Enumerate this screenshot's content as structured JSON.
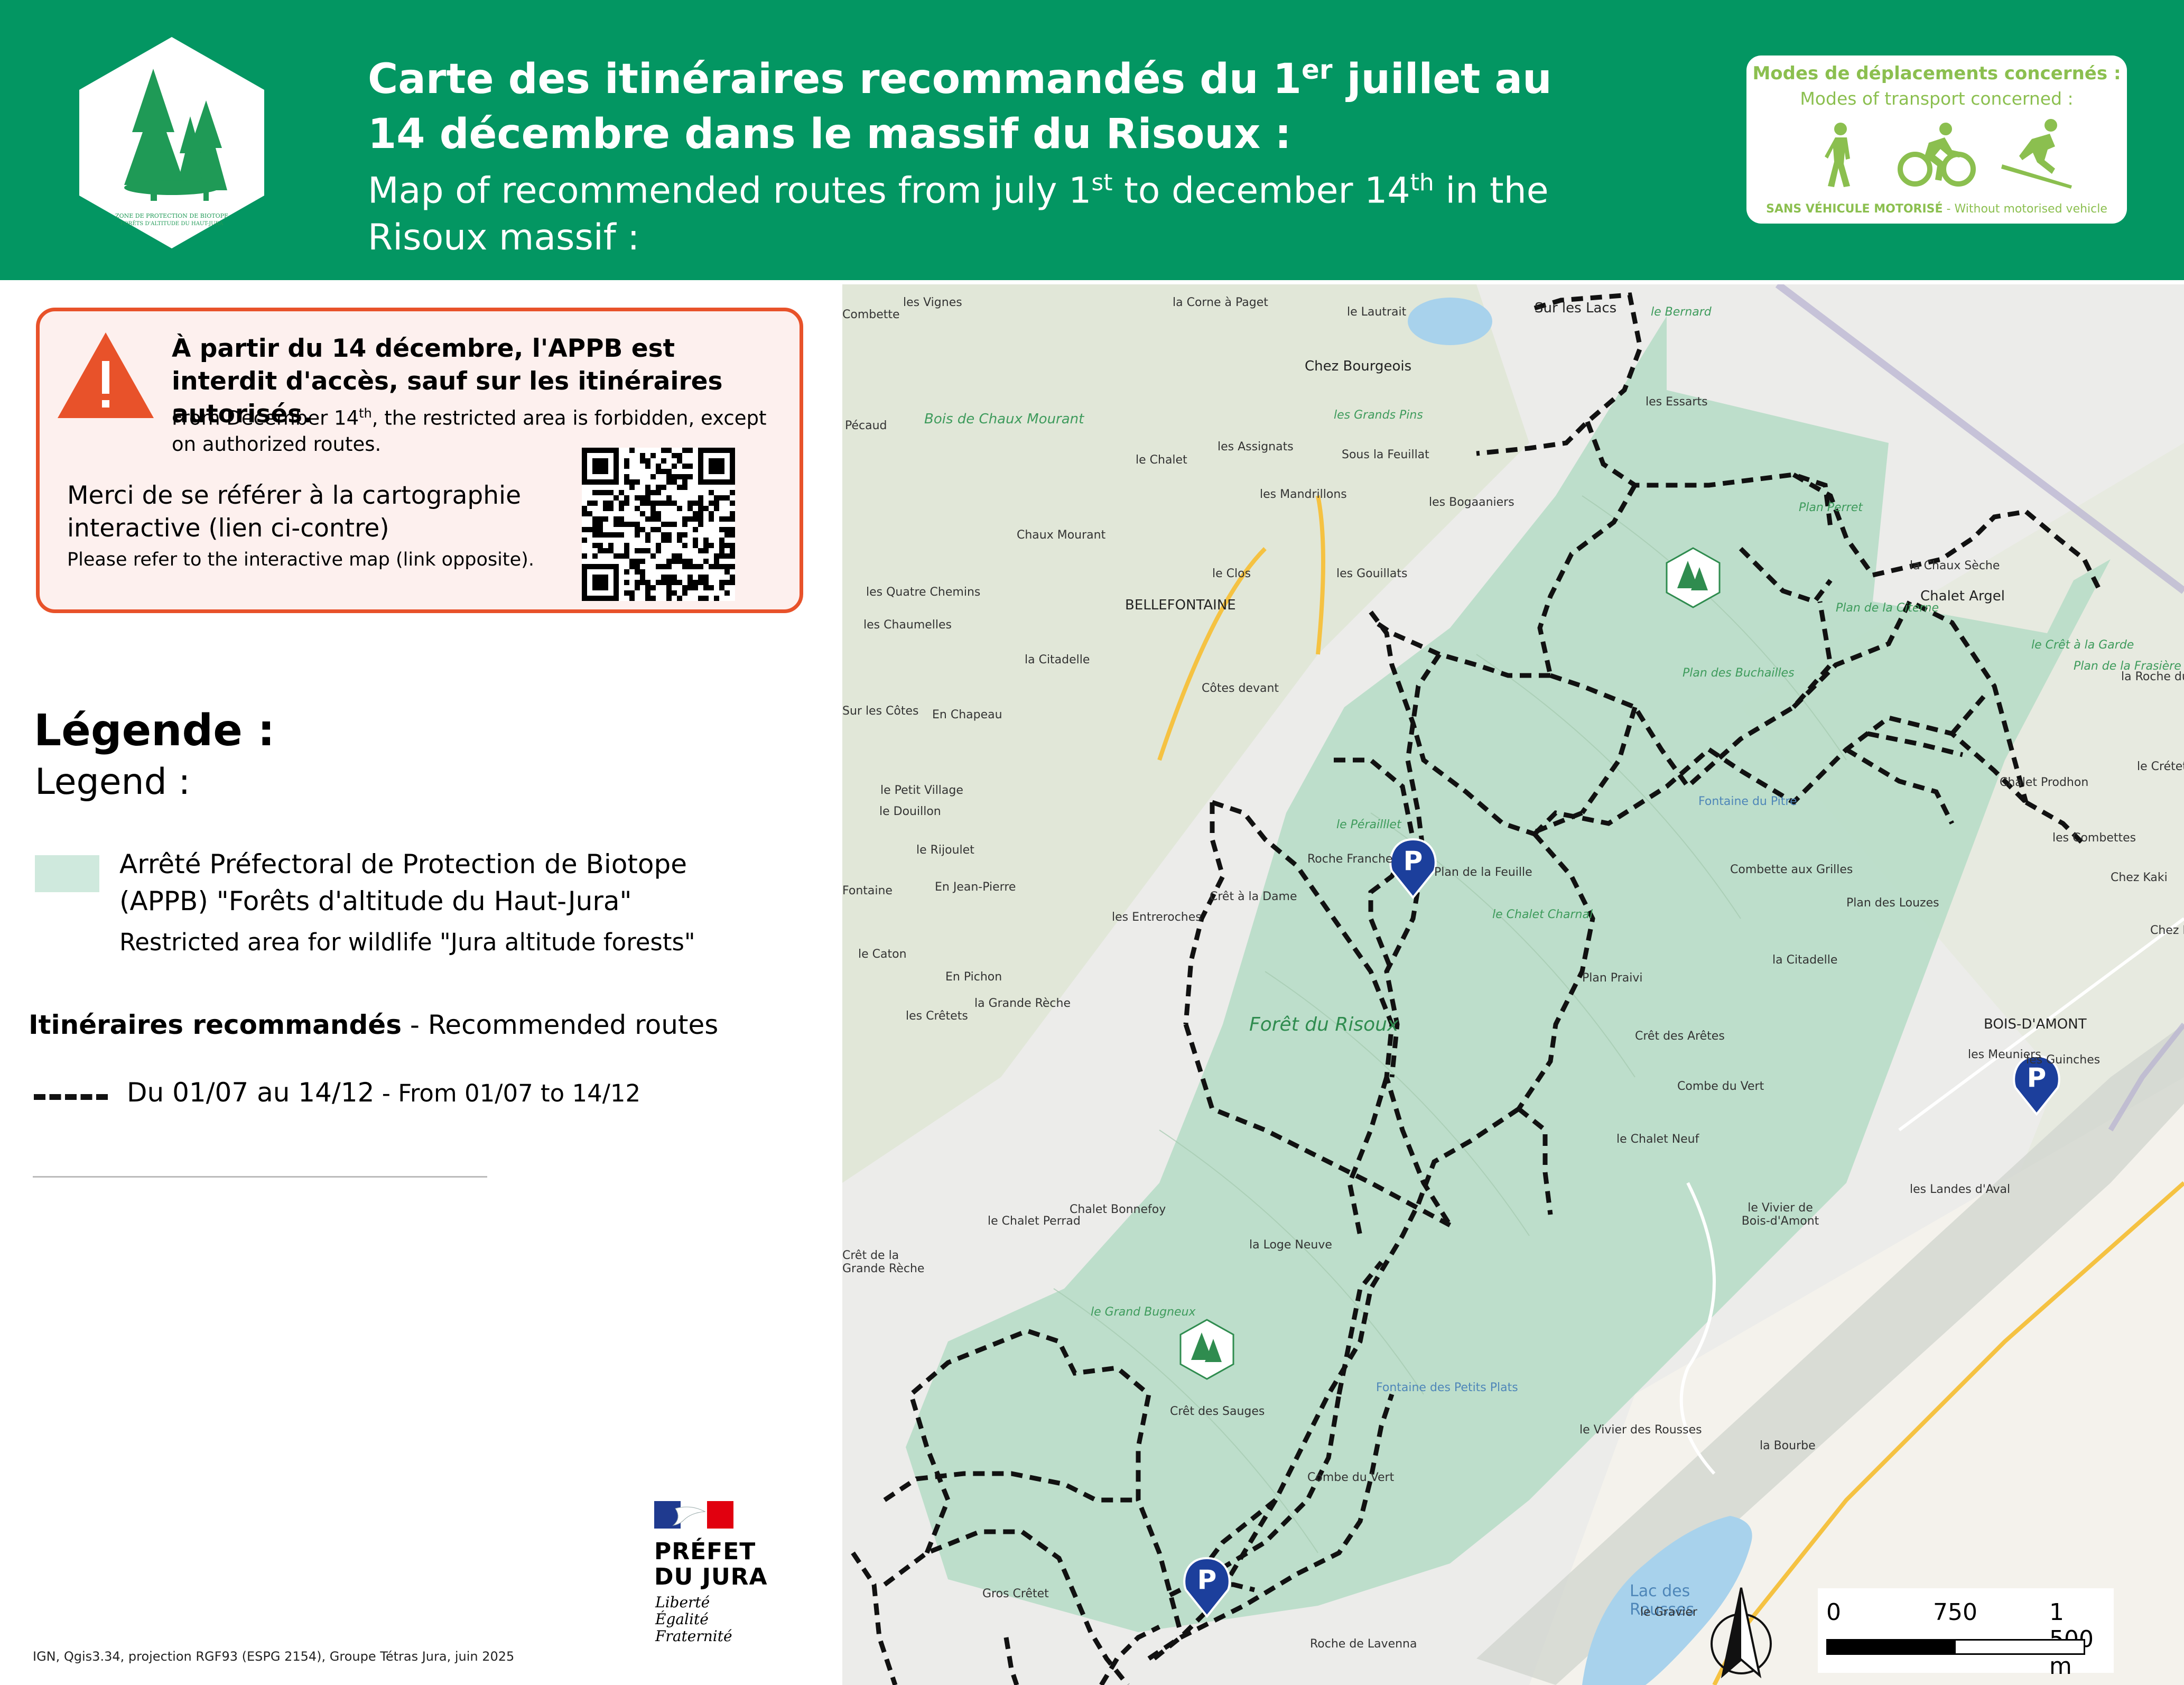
{
  "header": {
    "title_fr_pre": "Carte des itinéraires recommandés du 1",
    "title_fr_sup": "er",
    "title_fr_post1": " juillet au",
    "title_fr_line2": "14 décembre dans le massif du Risoux :",
    "title_en_pre": "Map of recommended routes from july 1",
    "title_en_sup1": "st",
    "title_en_mid": " to december 14",
    "title_en_sup2": "th",
    "title_en_post": " in the",
    "title_en_line2": "Risoux massif :",
    "logo_text_line1": "ZONE DE PROTECTION DE BIOTOPE",
    "logo_text_line2": "FORÊTS D'ALTITUDE DU HAUT-JURA",
    "modes_title": "Modes de déplacements concernés :",
    "modes_subtitle": "Modes of transport concerned :",
    "modes_footer_bold": "SANS VÉHICULE MOTORISÉ",
    "modes_footer_rest": " - Without motorised vehicle",
    "modes_icons": [
      "hiker-icon",
      "cyclist-icon",
      "skier-icon"
    ],
    "colors": {
      "header_bg": "#039662",
      "modes_green": "#8bbf4f"
    }
  },
  "warning": {
    "title": "À partir du 14 décembre, l'APPB est interdit d'accès, sauf sur les itinéraires autorisés.",
    "en_pre": "From December 14",
    "en_sup": "th",
    "en_post": ", the restricted area is forbidden, except on authorized routes.",
    "interactive_fr": "Merci de se référer à la cartographie interactive (lien ci-contre)",
    "interactive_en": "Please refer to the interactive map (link opposite).",
    "icon": "warning-triangle-icon",
    "border_color": "#e8522a"
  },
  "legend": {
    "title": "Légende :",
    "subtitle": "Legend :",
    "apbb_fr": "Arrêté Préfectoral de Protection de Biotope (APPB) \"Forêts d'altitude du Haut-Jura\"",
    "apbb_en": "Restricted area for wildlife \"Jura altitude forests\"",
    "routes_title": "Itinéraires recommandés",
    "routes_title_en": " - Recommended routes",
    "route_label": "Du 01/07 au 14/12",
    "route_label_en": " - From 01/07 to 14/12",
    "apbb_color": "#cfe9dd"
  },
  "prefet": {
    "line1": "PRÉFET",
    "line2": "DU JURA",
    "motto1": "Liberté",
    "motto2": "Égalité",
    "motto3": "Fraternité"
  },
  "credits": "IGN, Qgis3.34, projection RGF93 (ESPG 2154), Groupe Tétras Jura, juin 2025",
  "scale": {
    "l0": "0",
    "l1": "750",
    "l2": "1 500 m"
  },
  "map": {
    "places": [
      "Sur les Lacs",
      "Chez Bourgeois",
      "les Grands Pins",
      "les Assignats",
      "Sous la Feuillat",
      "le Chalet",
      "les Mandrillons",
      "Chaux Mourant",
      "Bois de Chaux Mourant",
      "le Clos",
      "les Gouillats",
      "BELLEFONTAINE",
      "la Citadelle",
      "Côtes devant",
      "En Chapeau",
      "le Petit Village",
      "le Rijoulet",
      "En Jean-Pierre",
      "les Entreroches",
      "Crêt à la Dame",
      "En Pichon",
      "les Crêtets",
      "la Grande Rèche",
      "Forêt du Risoux",
      "le Pérailllet",
      "Roche Franche",
      "Plan de la Feuille",
      "le Chalet Charnal",
      "Plan Praivi",
      "Crêt des Arêtes",
      "Combe du Vert",
      "le Chalet Neuf",
      "Chalet Bonnefoy",
      "le Chalet Perrad",
      "la Loge Neuve",
      "le Grand Bugneux",
      "Crêt des Sauges",
      "Combe du Vert",
      "Fontaine des Petits Plats",
      "le Vivier des Rousses",
      "la Bourbe",
      "Lac des Rousses",
      "le Gravier",
      "Roche de Lavenna",
      "Gros Crêtet",
      "Plan Perret",
      "Plan de la Citerne",
      "Plan des Buchailles",
      "Fontaine du Pitre",
      "Combette aux Grilles",
      "Plan des Louzes",
      "la Citadelle",
      "Chalet Argel",
      "la Chaux Sèche",
      "le Crêt à la Garde",
      "Plan de la Frasière",
      "la Roche du Joux",
      "Chalet Prodhon",
      "les Combettes",
      "Chez Kaki",
      "Chez Patr",
      "BOIS-D'AMONT",
      "les Meuniers",
      "les Guinches",
      "les Landes d'Aval",
      "le Vivier de Bois-d'Amont",
      "le Bernard",
      "les Essarts",
      "le Lautrait",
      "la Corne à Paget",
      "les Vignes",
      "Combette",
      "Pécaud",
      "les Quatre Chemins",
      "les Chaumelles",
      "Sur les Côtes",
      "le Douillon",
      "Fontaine",
      "le Caton",
      "Crêt de la Grande Rèche",
      "les Bogaaniers",
      "le Crétet",
      "Chaux-Mourant"
    ],
    "markers": [
      "parking-icon",
      "parking-icon",
      "parking-icon",
      "parking-icon",
      "forest-hex-icon",
      "forest-hex-icon"
    ]
  }
}
